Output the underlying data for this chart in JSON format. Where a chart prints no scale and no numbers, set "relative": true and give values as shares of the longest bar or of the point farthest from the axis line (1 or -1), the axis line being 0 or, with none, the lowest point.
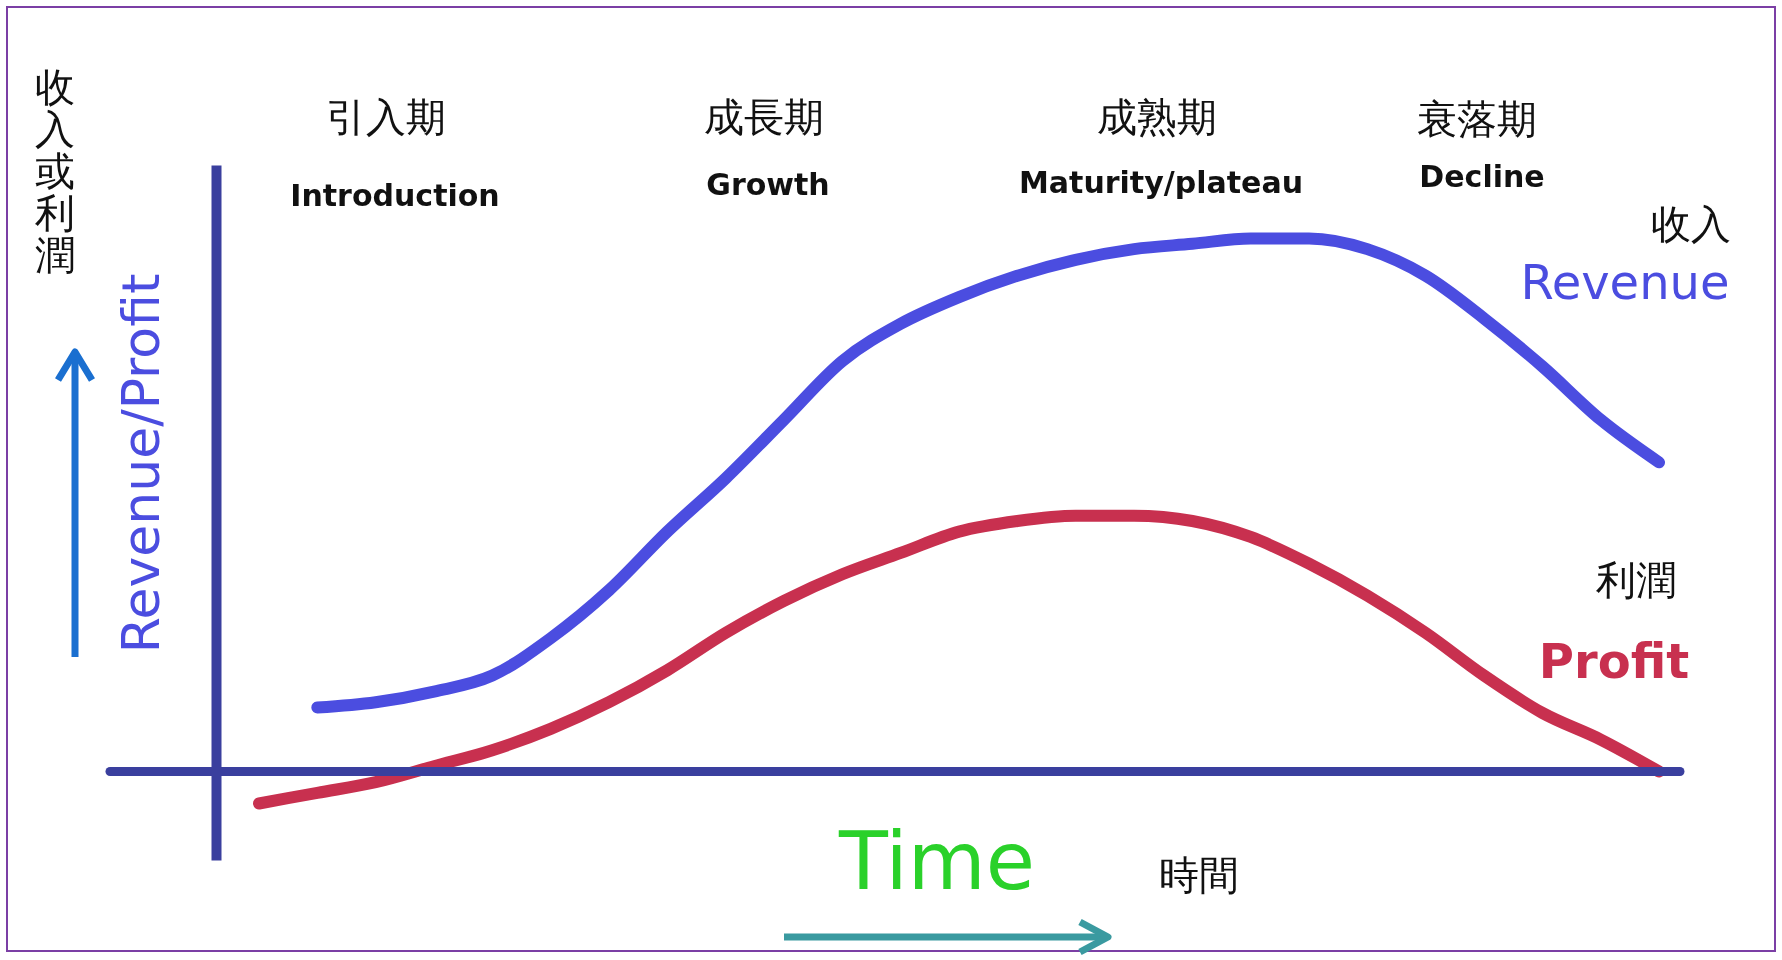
{
  "chart_data": {
    "type": "line",
    "relative": true,
    "xlabel": "Time",
    "ylabel": "Revenue/Profit",
    "legend": false,
    "grid": false,
    "ref_lines": [
      {
        "axis": "y",
        "value": 0,
        "color": "#3a3f9e"
      }
    ],
    "categories": [
      null,
      null,
      null,
      null,
      null,
      null,
      null,
      null,
      null,
      null,
      null,
      null,
      null,
      null,
      null,
      null,
      null,
      null,
      null,
      null,
      null,
      null,
      null,
      null,
      null
    ],
    "series": [
      {
        "name": "Revenue",
        "color": "#4b4de0",
        "values": [
          null,
          0.12,
          0.13,
          0.15,
          0.18,
          0.25,
          0.34,
          0.45,
          0.55,
          0.66,
          0.77,
          0.84,
          0.89,
          0.93,
          0.96,
          0.98,
          0.99,
          1.0,
          1.0,
          0.98,
          0.93,
          0.85,
          0.76,
          0.66,
          0.58
        ]
      },
      {
        "name": "Profit",
        "color": "#c8304f",
        "values": [
          -0.06,
          -0.04,
          -0.02,
          0.01,
          0.04,
          0.08,
          0.13,
          0.19,
          0.26,
          0.32,
          0.37,
          0.41,
          0.45,
          0.47,
          0.48,
          0.48,
          0.47,
          0.44,
          0.39,
          0.33,
          0.26,
          0.18,
          0.11,
          0.06,
          0.0
        ]
      }
    ],
    "annotations": [
      "引入期",
      "Introduction",
      "成長期",
      "Growth",
      "成熟期",
      "Maturity/plateau",
      "衰落期",
      "Decline",
      "收入",
      "利潤",
      "時間",
      "收入或利潤"
    ]
  }
}
